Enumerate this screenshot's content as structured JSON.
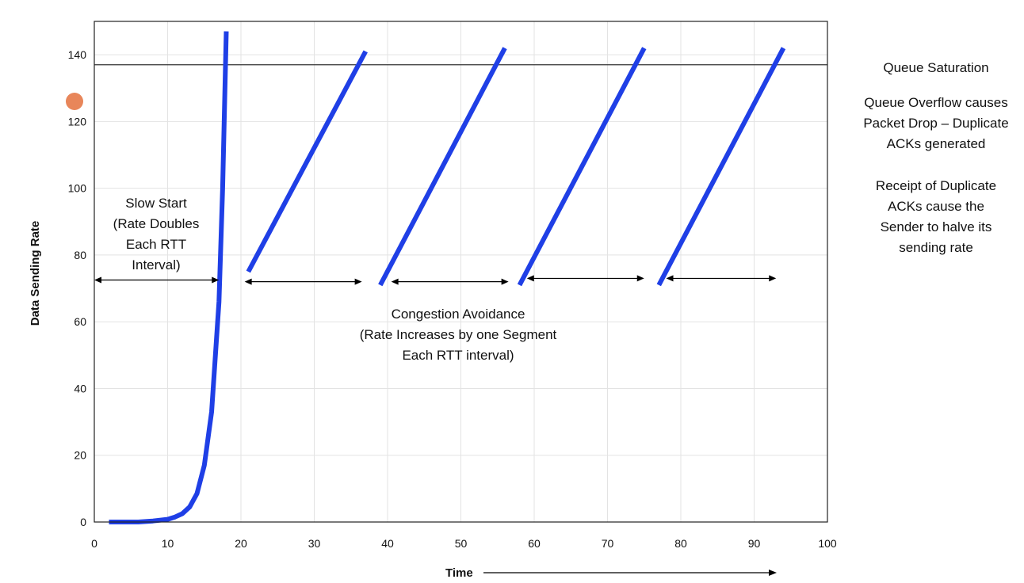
{
  "chart_data": {
    "type": "line",
    "title": "",
    "xlabel": "Time",
    "ylabel": "Data Sending Rate",
    "xlim": [
      0,
      100
    ],
    "ylim": [
      0,
      150
    ],
    "x_ticks": [
      0,
      10,
      20,
      30,
      40,
      50,
      60,
      70,
      80,
      90,
      100
    ],
    "y_ticks": [
      0,
      20,
      40,
      60,
      80,
      100,
      120,
      140
    ],
    "grid": true,
    "legend": "none",
    "series_color": "#1f3fe6",
    "threshold": {
      "y": 137,
      "color": "#333333"
    },
    "series": [
      {
        "x": [
          2,
          4,
          6,
          8,
          10,
          11,
          12,
          13,
          14,
          15,
          16,
          17,
          17.5,
          18
        ],
        "y": [
          0,
          0,
          0,
          0.3,
          0.8,
          1.5,
          2.5,
          4.5,
          8.5,
          17,
          33,
          66,
          100,
          147
        ]
      },
      {
        "x": [
          21,
          37
        ],
        "y": [
          75,
          141
        ]
      },
      {
        "x": [
          39,
          56
        ],
        "y": [
          71,
          142
        ]
      },
      {
        "x": [
          58,
          75
        ],
        "y": [
          71,
          142
        ]
      },
      {
        "x": [
          77,
          94
        ],
        "y": [
          71,
          142
        ]
      }
    ],
    "spans": [
      {
        "x": [
          0,
          17
        ],
        "y": 72.5
      },
      {
        "x": [
          20.5,
          36.5
        ],
        "y": 72
      },
      {
        "x": [
          40.5,
          56.5
        ],
        "y": 72
      },
      {
        "x": [
          59,
          75
        ],
        "y": 73
      },
      {
        "x": [
          78,
          93
        ],
        "y": 73
      }
    ],
    "annotations": {
      "slow_start": [
        "Slow Start",
        "(Rate Doubles",
        "Each RTT",
        "Interval)"
      ],
      "congestion_avoidance": [
        "Congestion Avoidance",
        "(Rate Increases by one Segment",
        "Each RTT interval)"
      ],
      "queue_saturation": [
        "Queue Saturation"
      ],
      "queue_overflow": [
        "Queue Overflow causes",
        "Packet Drop – Duplicate",
        "ACKs generated"
      ],
      "duplicate_acks": [
        "Receipt of Duplicate",
        "ACKs cause the",
        "Sender to halve its",
        "sending rate"
      ]
    }
  }
}
